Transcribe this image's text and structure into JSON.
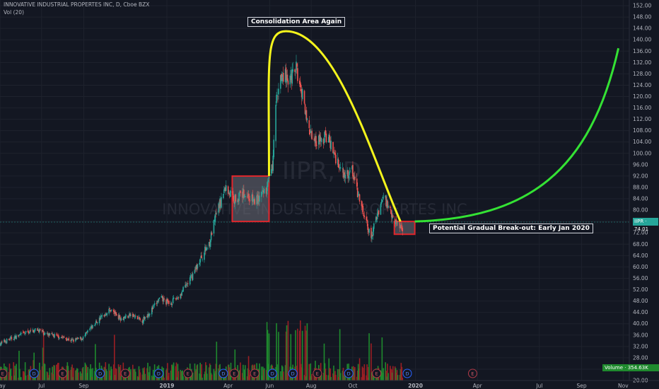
{
  "header": {
    "title": "INNOVATIVE INDUSTRIAL PROPERTES INC, D, Cboe BZX",
    "indicator": "Vol (20)"
  },
  "watermark": {
    "symbol": "IIPR, D",
    "name": "INNOVATIVE INDUSTRIAL PROPERTES INC"
  },
  "annotations": {
    "top_note": "Consolidation Area Again",
    "bottom_note": "Potential Gradual Break-out: Early Jan 2020"
  },
  "price_tag": {
    "label": "IIPR · 74.01",
    "value": 74.01
  },
  "volume_tag": {
    "label": "Volume · 354.63K"
  },
  "colors": {
    "background": "#131722",
    "up_candle": "#26a69a",
    "down_candle": "#ef5350",
    "volume_up": "#1f8a2e",
    "volume_down": "#9b1f24",
    "arc": "#f4f41c",
    "projection": "#34e234",
    "box": "#e0262c"
  },
  "chart_data": {
    "type": "candlestick",
    "y_axis": {
      "side": "right",
      "range": [
        20,
        154
      ],
      "ticks": [
        "20.00",
        "24.00",
        "28.00",
        "32.00",
        "36.00",
        "40.00",
        "44.00",
        "48.00",
        "52.00",
        "56.00",
        "60.00",
        "64.00",
        "68.00",
        "72.00",
        "76.00",
        "80.00",
        "84.00",
        "88.00",
        "92.00",
        "96.00",
        "100.00",
        "104.00",
        "108.00",
        "112.00",
        "116.00",
        "120.00",
        "124.00",
        "128.00",
        "132.00",
        "136.00",
        "140.00",
        "144.00",
        "148.00",
        "152.00"
      ]
    },
    "x_axis": {
      "range": [
        "2018-05-01",
        "2020-11-10"
      ],
      "ticks": [
        {
          "date": "2018-05-01",
          "label": "May"
        },
        {
          "date": "2018-07-01",
          "label": "Jul"
        },
        {
          "date": "2018-09-01",
          "label": "Sep"
        },
        {
          "date": "2019-01-01",
          "label": "2019"
        },
        {
          "date": "2019-04-01",
          "label": "Apr"
        },
        {
          "date": "2019-06-01",
          "label": "Jun"
        },
        {
          "date": "2019-08-01",
          "label": "Aug"
        },
        {
          "date": "2019-10-01",
          "label": "Oct"
        },
        {
          "date": "2020-01-01",
          "label": "2020"
        },
        {
          "date": "2020-04-01",
          "label": "Apr"
        },
        {
          "date": "2020-07-01",
          "label": "Jul"
        },
        {
          "date": "2020-09-01",
          "label": "Sep"
        },
        {
          "date": "2020-11-01",
          "label": "Nov"
        }
      ]
    },
    "grid": true,
    "price_path": [
      {
        "date": "2018-05-01",
        "close": 33
      },
      {
        "date": "2018-05-20",
        "close": 35
      },
      {
        "date": "2018-06-10",
        "close": 37
      },
      {
        "date": "2018-06-25",
        "close": 38
      },
      {
        "date": "2018-07-10",
        "close": 36
      },
      {
        "date": "2018-07-28",
        "close": 35.5
      },
      {
        "date": "2018-08-15",
        "close": 34
      },
      {
        "date": "2018-08-31",
        "close": 35
      },
      {
        "date": "2018-09-10",
        "close": 38
      },
      {
        "date": "2018-09-25",
        "close": 42
      },
      {
        "date": "2018-10-10",
        "close": 45
      },
      {
        "date": "2018-10-25",
        "close": 42
      },
      {
        "date": "2018-11-10",
        "close": 43
      },
      {
        "date": "2018-11-25",
        "close": 41
      },
      {
        "date": "2018-12-10",
        "close": 45
      },
      {
        "date": "2018-12-22",
        "close": 49
      },
      {
        "date": "2019-01-05",
        "close": 47
      },
      {
        "date": "2019-01-20",
        "close": 50
      },
      {
        "date": "2019-02-05",
        "close": 56
      },
      {
        "date": "2019-02-20",
        "close": 63
      },
      {
        "date": "2019-03-05",
        "close": 69
      },
      {
        "date": "2019-03-15",
        "close": 79
      },
      {
        "date": "2019-03-28",
        "close": 88
      },
      {
        "date": "2019-04-10",
        "close": 84
      },
      {
        "date": "2019-04-25",
        "close": 86
      },
      {
        "date": "2019-05-10",
        "close": 83
      },
      {
        "date": "2019-05-25",
        "close": 86
      },
      {
        "date": "2019-06-05",
        "close": 95
      },
      {
        "date": "2019-06-10",
        "close": 118
      },
      {
        "date": "2019-06-20",
        "close": 128
      },
      {
        "date": "2019-07-01",
        "close": 126
      },
      {
        "date": "2019-07-10",
        "close": 130
      },
      {
        "date": "2019-07-20",
        "close": 120
      },
      {
        "date": "2019-07-30",
        "close": 108
      },
      {
        "date": "2019-08-10",
        "close": 104
      },
      {
        "date": "2019-08-25",
        "close": 106
      },
      {
        "date": "2019-09-05",
        "close": 99
      },
      {
        "date": "2019-09-20",
        "close": 92
      },
      {
        "date": "2019-09-30",
        "close": 94
      },
      {
        "date": "2019-10-10",
        "close": 84
      },
      {
        "date": "2019-10-20",
        "close": 76
      },
      {
        "date": "2019-10-28",
        "close": 70
      },
      {
        "date": "2019-11-05",
        "close": 78
      },
      {
        "date": "2019-11-15",
        "close": 85
      },
      {
        "date": "2019-11-25",
        "close": 80
      },
      {
        "date": "2019-12-05",
        "close": 75
      },
      {
        "date": "2019-12-15",
        "close": 74
      }
    ],
    "consolidation_boxes": [
      {
        "start": "2019-04-07",
        "end": "2019-05-31",
        "low": 76,
        "high": 92
      },
      {
        "start": "2019-12-01",
        "end": "2019-12-31",
        "low": 71.5,
        "high": 76
      }
    ],
    "arc": {
      "start_date": "2019-05-31",
      "start_price": 92,
      "peak_date": "2019-06-25",
      "peak_price": 143,
      "end_date": "2019-12-10",
      "end_price": 76
    },
    "projection": {
      "start_date": "2019-12-31",
      "start_price": 76,
      "end_date": "2020-10-25",
      "end_price": 137
    },
    "last_price": 74.01,
    "earnings_markers": [
      {
        "date": "2018-05-05",
        "label": "E"
      },
      {
        "date": "2018-06-20",
        "label": "D"
      },
      {
        "date": "2018-08-01",
        "label": "E"
      },
      {
        "date": "2018-09-25",
        "label": "D"
      },
      {
        "date": "2018-11-01",
        "label": "E"
      },
      {
        "date": "2018-12-20",
        "label": "D"
      },
      {
        "date": "2019-02-01",
        "label": "E"
      },
      {
        "date": "2019-03-25",
        "label": "D"
      },
      {
        "date": "2019-04-10",
        "label": "E"
      },
      {
        "date": "2019-05-10",
        "label": "E"
      },
      {
        "date": "2019-06-05",
        "label": "D"
      },
      {
        "date": "2019-07-05",
        "label": "D"
      },
      {
        "date": "2019-08-10",
        "label": "E"
      },
      {
        "date": "2019-09-25",
        "label": "D"
      },
      {
        "date": "2019-11-05",
        "label": "E"
      },
      {
        "date": "2019-12-20",
        "label": "D"
      },
      {
        "date": "2020-03-25",
        "label": "E"
      }
    ]
  }
}
